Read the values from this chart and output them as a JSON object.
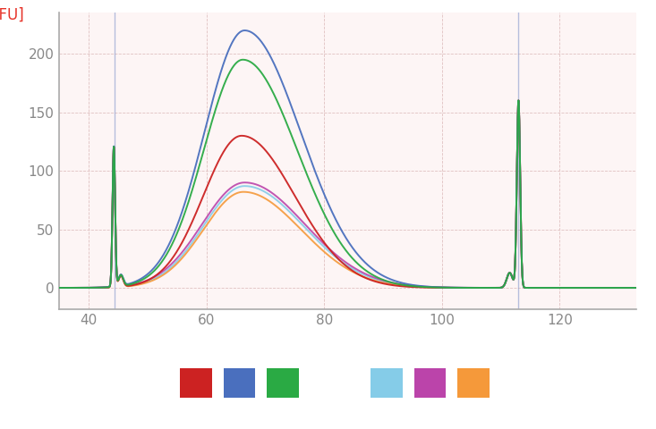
{
  "ylabel": "[FU]",
  "xlim": [
    35,
    133
  ],
  "ylim": [
    -18,
    235
  ],
  "yticks": [
    0,
    50,
    100,
    150,
    200
  ],
  "xticks": [
    40,
    60,
    80,
    100,
    120
  ],
  "bg_color": "#ffffff",
  "plot_bg_color": "#fdf5f5",
  "grid_color": "#ddbbbb",
  "axis_color": "#aaaaaa",
  "tick_color": "#888888",
  "ylabel_color": "#e63329",
  "marker_line_x": [
    44.5,
    113.0
  ],
  "manual_colors": [
    "#cc2222",
    "#4a6fbe",
    "#2aaa44"
  ],
  "automated_colors": [
    "#85cce8",
    "#bb44aa",
    "#f5993a"
  ],
  "manual_params": [
    [
      120,
      66.0,
      130,
      6.5,
      9.0,
      160
    ],
    [
      120,
      66.5,
      220,
      6.8,
      9.5,
      160
    ],
    [
      120,
      66.2,
      195,
      6.6,
      9.2,
      160
    ]
  ],
  "automated_params": [
    [
      120,
      66.5,
      87,
      7.0,
      10.0,
      160
    ],
    [
      120,
      66.5,
      90,
      7.2,
      10.2,
      160
    ],
    [
      120,
      66.3,
      82,
      6.8,
      9.8,
      160
    ]
  ]
}
